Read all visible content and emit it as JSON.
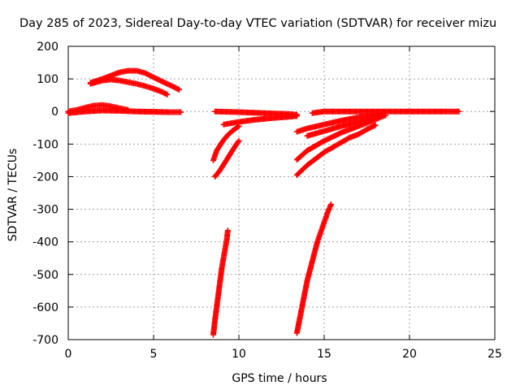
{
  "chart_data": {
    "type": "scatter",
    "title": "Day 285 of 2023, Sidereal Day-to-day VTEC variation (SDTVAR) for receiver mizu",
    "xlabel": "GPS time / hours",
    "ylabel": "SDTVAR / TECUs",
    "xlim": [
      0,
      25
    ],
    "ylim": [
      -700,
      200
    ],
    "xticks": [
      0,
      5,
      10,
      15,
      20,
      25
    ],
    "yticks": [
      200,
      100,
      0,
      -100,
      -200,
      -300,
      -400,
      -500,
      -600,
      -700
    ],
    "grid": true,
    "marker": "+",
    "color": "#ff0000",
    "series": [
      {
        "x": [
          0,
          0.5,
          1,
          1.5,
          2,
          2.5,
          3,
          3.5
        ],
        "y": [
          0,
          5,
          12,
          18,
          20,
          16,
          10,
          5
        ]
      },
      {
        "x": [
          0,
          1,
          2,
          3,
          4,
          5,
          6,
          6.6
        ],
        "y": [
          -5,
          0,
          3,
          2,
          0,
          -1,
          -2,
          -2
        ]
      },
      {
        "x": [
          1.3,
          2,
          2.5,
          3,
          3.5,
          4,
          4.5,
          5,
          5.5,
          6,
          6.5
        ],
        "y": [
          88,
          100,
          110,
          120,
          125,
          125,
          118,
          105,
          92,
          80,
          67
        ]
      },
      {
        "x": [
          1.3,
          2,
          2.5,
          3,
          3.5,
          4,
          4.5,
          5,
          5.5,
          5.8
        ],
        "y": [
          85,
          95,
          98,
          95,
          90,
          85,
          78,
          70,
          60,
          52
        ]
      },
      {
        "x": [
          8.5,
          8.6,
          8.7,
          8.8,
          8.9,
          9.0,
          9.1,
          9.2,
          9.3,
          9.35
        ],
        "y": [
          -685,
          -640,
          -600,
          -560,
          -520,
          -480,
          -450,
          -420,
          -390,
          -365
        ]
      },
      {
        "x": [
          8.5,
          8.7,
          9.0,
          9.3,
          9.6,
          10.0
        ],
        "y": [
          -150,
          -120,
          -95,
          -75,
          -60,
          -45
        ]
      },
      {
        "x": [
          8.6,
          8.9,
          9.2,
          9.5,
          9.8,
          10.0
        ],
        "y": [
          -200,
          -180,
          -155,
          -130,
          -105,
          -90
        ]
      },
      {
        "x": [
          9.1,
          10,
          11,
          12,
          13,
          13.4
        ],
        "y": [
          -40,
          -32,
          -25,
          -20,
          -16,
          -14
        ]
      },
      {
        "x": [
          8.6,
          10,
          11,
          12,
          13,
          13.4
        ],
        "y": [
          0,
          -2,
          -4,
          -6,
          -8,
          -10
        ]
      },
      {
        "x": [
          13.4,
          13.55,
          13.7,
          13.85,
          14.0,
          14.2,
          14.4,
          14.6,
          14.8,
          15.0,
          15.2,
          15.4
        ],
        "y": [
          -680,
          -640,
          -600,
          -560,
          -520,
          -480,
          -440,
          -400,
          -370,
          -340,
          -310,
          -285
        ]
      },
      {
        "x": [
          13.4,
          14,
          14.5,
          15,
          15.5,
          16,
          16.5,
          17,
          17.5,
          18
        ],
        "y": [
          -195,
          -165,
          -145,
          -125,
          -110,
          -95,
          -80,
          -70,
          -55,
          -42
        ]
      },
      {
        "x": [
          13.4,
          14,
          15,
          16,
          17,
          18,
          18.4
        ],
        "y": [
          -148,
          -120,
          -90,
          -65,
          -45,
          -25,
          -15
        ]
      },
      {
        "x": [
          13.4,
          14,
          15,
          16,
          17,
          18,
          18.5
        ],
        "y": [
          -62,
          -52,
          -40,
          -28,
          -18,
          -10,
          -5
        ]
      },
      {
        "x": [
          14.0,
          15,
          16,
          17,
          18,
          18.6
        ],
        "y": [
          -75,
          -60,
          -45,
          -32,
          -20,
          -12
        ]
      },
      {
        "x": [
          14.3,
          15,
          16,
          17,
          18,
          19,
          20,
          21,
          22,
          22.9
        ],
        "y": [
          -5,
          0,
          0,
          0,
          0,
          0,
          0,
          0,
          0,
          0
        ]
      }
    ]
  }
}
